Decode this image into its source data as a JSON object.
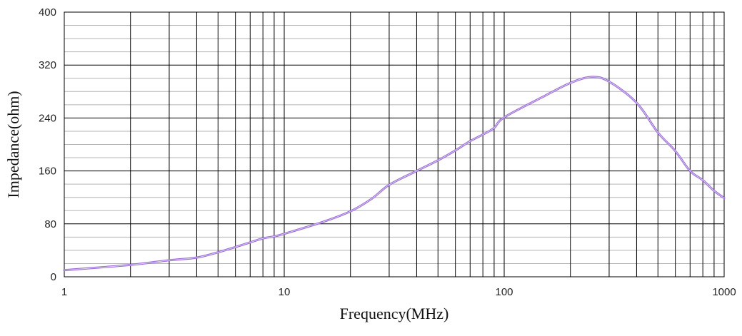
{
  "chart_data": {
    "type": "line",
    "xlabel": "Frequency(MHz)",
    "ylabel": "Impedance(ohm)",
    "x_scale": "log",
    "xlim": [
      1,
      1000
    ],
    "ylim": [
      0,
      400
    ],
    "x_ticks": [
      "1",
      "10",
      "100",
      "1000"
    ],
    "y_ticks": [
      "0",
      "80",
      "160",
      "240",
      "320",
      "400"
    ],
    "grid": true,
    "series_color": "#9b6fd6",
    "series": [
      {
        "x": [
          1,
          2,
          3,
          4,
          5,
          6,
          7,
          8,
          9,
          10,
          15,
          20,
          25,
          30,
          40,
          50,
          60,
          70,
          80,
          90,
          100,
          150,
          200,
          250,
          300,
          400,
          500,
          600,
          700,
          800,
          900,
          1000
        ],
        "values": [
          10,
          18,
          25,
          29,
          37,
          45,
          52,
          58,
          61,
          65,
          83,
          99,
          118,
          139,
          160,
          176,
          191,
          205,
          215,
          225,
          241,
          272,
          293,
          302,
          295,
          263,
          218,
          190,
          160,
          146,
          130,
          119
        ]
      }
    ]
  }
}
